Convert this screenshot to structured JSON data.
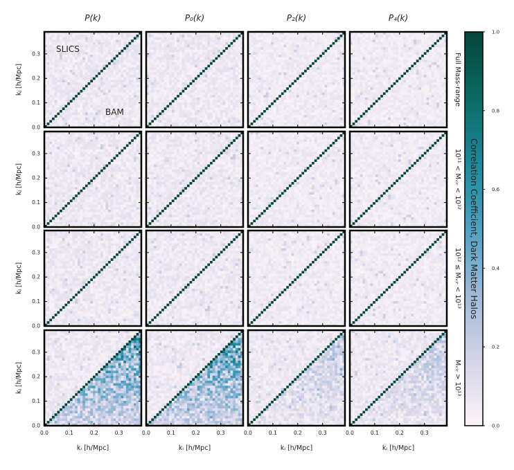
{
  "chart_data": {
    "type": "heatmap",
    "layout": "grid 4 rows x 4 columns of correlation-matrix heatmaps",
    "column_titles": [
      "P(k)",
      "P₀(k)",
      "P₂(k)",
      "P₄(k)"
    ],
    "row_labels": [
      "Full Mass-range",
      "10¹¹ < Mᵥᵢᵣ < 10¹²",
      "10¹² ≤ Mᵥᵢᵣ < 10¹³",
      "Mᵥᵢᵣ > 10¹³"
    ],
    "annotations": {
      "upper_triangle": "SLICS",
      "lower_triangle": "BAM"
    },
    "xlabel": "kᵢ [h/Mpc]",
    "ylabel": "kⱼ [h/Mpc]",
    "xlim": [
      0.0,
      0.39
    ],
    "ylim": [
      0.0,
      0.39
    ],
    "xticks": [
      "0.0",
      "0.1",
      "0.2",
      "0.3"
    ],
    "yticks": [
      "0.0",
      "0.1",
      "0.2",
      "0.3"
    ],
    "n_bins": 38,
    "diagonal_value": 1.0,
    "colorbar": {
      "label": "Correlation Coefficient, Dark Matter Halos",
      "range": [
        0.0,
        1.0
      ],
      "ticks": [
        "0.0",
        "0.2",
        "0.4",
        "0.6",
        "0.8",
        "1.0"
      ],
      "colormap": [
        "#fcf4f8",
        "#d4d4e8",
        "#9fbad8",
        "#4ca2c3",
        "#1a8a9c",
        "#0b6a63",
        "#04453a"
      ]
    },
    "panels_offdiag_mean": [
      [
        0.06,
        0.06,
        0.05,
        0.05
      ],
      [
        0.06,
        0.06,
        0.05,
        0.05
      ],
      [
        0.06,
        0.06,
        0.05,
        0.05
      ],
      [
        0.28,
        0.28,
        0.12,
        0.12
      ]
    ]
  }
}
